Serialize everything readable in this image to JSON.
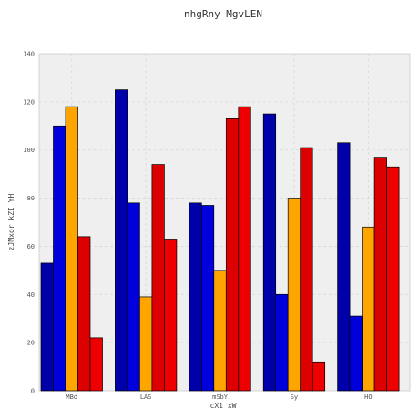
{
  "chart_data": {
    "type": "bar",
    "title": "nhgRny MgvLEN",
    "xlabel": "cX1 xW",
    "ylabel": "zJMxor kZI YH",
    "categories": [
      "MBd",
      "LAS",
      "mSbY",
      "Sy",
      "HO"
    ],
    "ylim": [
      0,
      140
    ],
    "yticks": [
      0,
      20,
      40,
      60,
      80,
      100,
      120,
      140
    ],
    "grid": true,
    "series": [
      {
        "color": "#0000aa",
        "values": [
          53,
          125,
          78,
          115,
          103
        ]
      },
      {
        "color": "#0000dd",
        "values": [
          110,
          78,
          77,
          40,
          31
        ]
      },
      {
        "color": "#ffa500",
        "values": [
          118,
          39,
          50,
          80,
          68
        ]
      },
      {
        "color": "#dd0000",
        "values": [
          64,
          94,
          113,
          101,
          97
        ]
      },
      {
        "color": "#ee0000",
        "values": [
          22,
          63,
          118,
          12,
          93
        ]
      }
    ]
  }
}
